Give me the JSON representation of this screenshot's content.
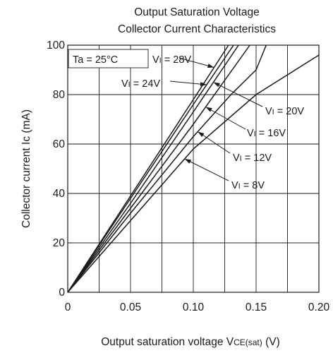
{
  "chart_data": {
    "type": "line",
    "title_line1": "Output Saturation Voltage",
    "title_line2": "Collector Current Characteristics",
    "xlabel_main": "Output saturation voltage  V",
    "xlabel_sub": "CE(sat)",
    "xlabel_unit": " (V)",
    "ylabel": "Collector current  Ic (mA)",
    "xlim": [
      0,
      0.2
    ],
    "ylim": [
      0,
      100
    ],
    "x_ticks": [
      {
        "value": 0,
        "label": "0"
      },
      {
        "value": 0.05,
        "label": "0.05"
      },
      {
        "value": 0.1,
        "label": "0.10"
      },
      {
        "value": 0.15,
        "label": "0.15"
      },
      {
        "value": 0.2,
        "label": "0.20"
      }
    ],
    "y_ticks": [
      {
        "value": 0,
        "label": "0"
      },
      {
        "value": 20,
        "label": "20"
      },
      {
        "value": 40,
        "label": "40"
      },
      {
        "value": 60,
        "label": "60"
      },
      {
        "value": 80,
        "label": "80"
      },
      {
        "value": 100,
        "label": "100"
      }
    ],
    "grid": true,
    "condition": "Ta = 25°C",
    "series": [
      {
        "name": "VI = 28V",
        "points": [
          [
            0,
            0
          ],
          [
            0.05,
            39
          ],
          [
            0.1,
            78
          ],
          [
            0.128,
            100
          ]
        ]
      },
      {
        "name": "VI = 24V",
        "points": [
          [
            0,
            0
          ],
          [
            0.05,
            38
          ],
          [
            0.1,
            76
          ],
          [
            0.132,
            100
          ]
        ]
      },
      {
        "name": "VI = 20V",
        "points": [
          [
            0,
            0
          ],
          [
            0.05,
            36
          ],
          [
            0.1,
            73
          ],
          [
            0.136,
            100
          ]
        ]
      },
      {
        "name": "VI = 16V",
        "points": [
          [
            0,
            0
          ],
          [
            0.05,
            34
          ],
          [
            0.1,
            68
          ],
          [
            0.145,
            100
          ]
        ]
      },
      {
        "name": "VI = 12V",
        "points": [
          [
            0,
            0
          ],
          [
            0.05,
            32
          ],
          [
            0.1,
            63
          ],
          [
            0.13,
            80
          ],
          [
            0.15,
            90
          ],
          [
            0.158,
            100
          ]
        ]
      },
      {
        "name": "VI = 8V",
        "points": [
          [
            0,
            0
          ],
          [
            0.05,
            29
          ],
          [
            0.1,
            58
          ],
          [
            0.15,
            80
          ],
          [
            0.175,
            88
          ],
          [
            0.2,
            96
          ]
        ]
      }
    ],
    "annotations": [
      {
        "series": "VI = 28V",
        "sub": "I",
        "prefix": "V",
        "suffix": " = 28V"
      },
      {
        "series": "VI = 24V",
        "sub": "I",
        "prefix": "V",
        "suffix": " = 24V"
      },
      {
        "series": "VI = 20V",
        "sub": "I",
        "prefix": "V",
        "suffix": " = 20V"
      },
      {
        "series": "VI = 16V",
        "sub": "I",
        "prefix": "V",
        "suffix": " = 16V"
      },
      {
        "series": "VI = 12V",
        "sub": "I",
        "prefix": "V",
        "suffix": " = 12V"
      },
      {
        "series": "VI = 8V",
        "sub": "I",
        "prefix": "V",
        "suffix": " = 8V"
      }
    ]
  }
}
